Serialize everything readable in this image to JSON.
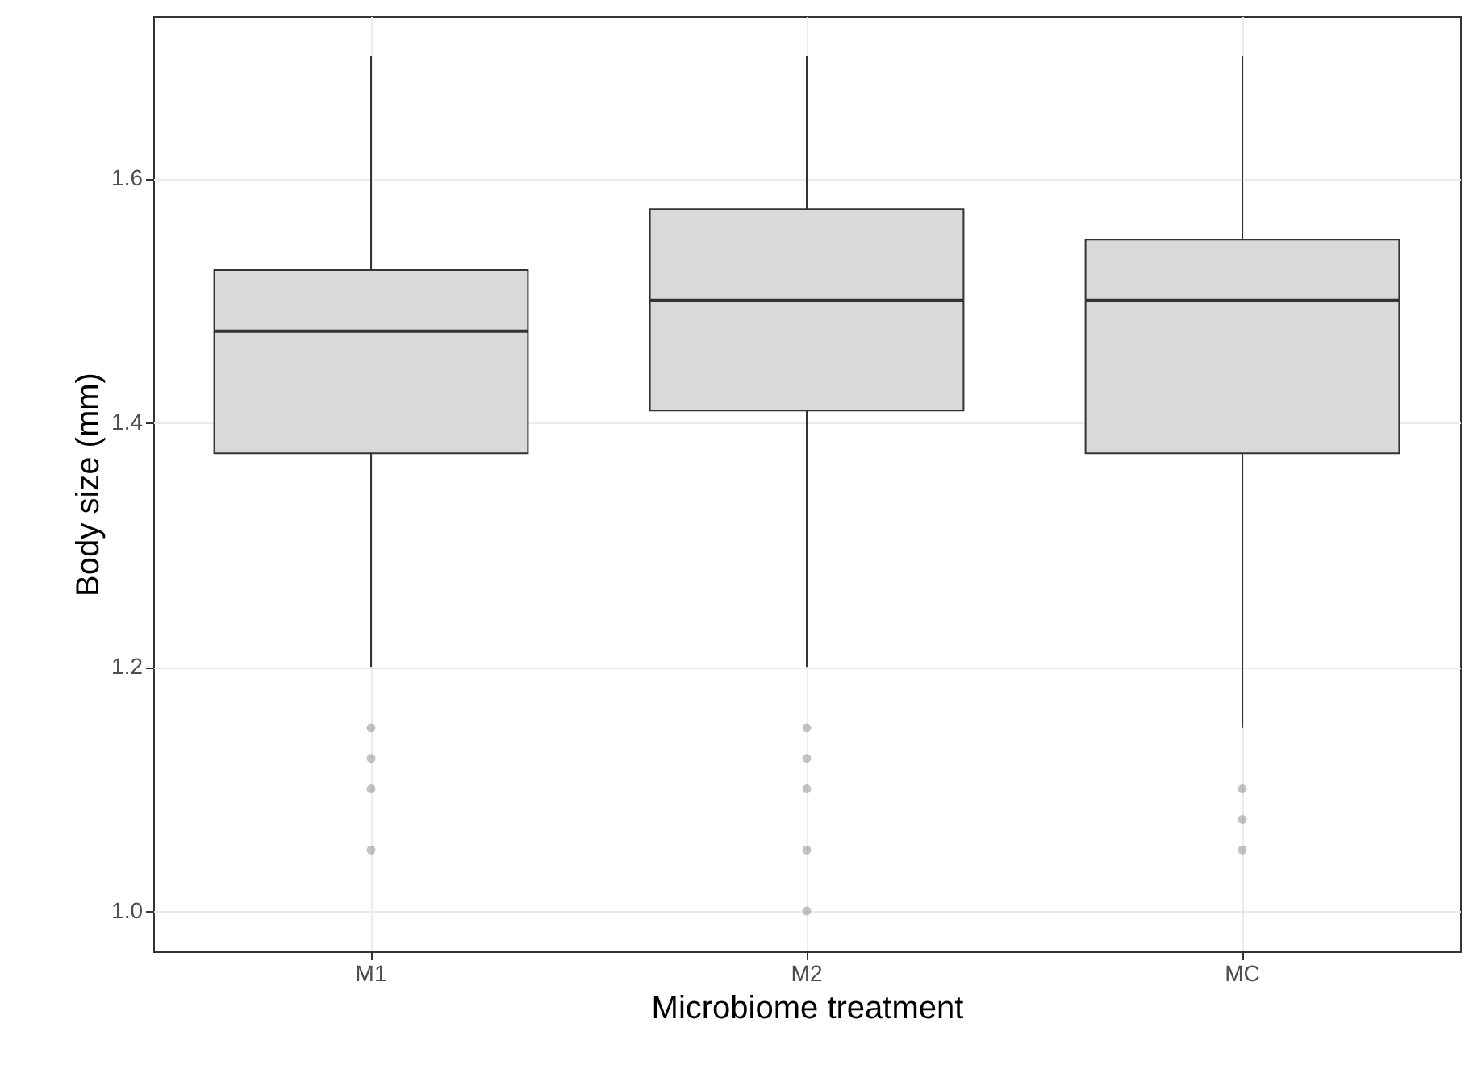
{
  "chart_data": {
    "type": "box",
    "xlabel": "Microbiome treatment",
    "ylabel": "Body size (mm)",
    "categories": [
      "M1",
      "M2",
      "MC"
    ],
    "boxes": [
      {
        "low": 1.2,
        "q1": 1.375,
        "median": 1.475,
        "q3": 1.525,
        "high": 1.7,
        "outliers": [
          1.15,
          1.125,
          1.1,
          1.05
        ]
      },
      {
        "low": 1.2,
        "q1": 1.41,
        "median": 1.5,
        "q3": 1.575,
        "high": 1.7,
        "outliers": [
          1.15,
          1.125,
          1.1,
          1.05,
          1.0
        ]
      },
      {
        "low": 1.15,
        "q1": 1.375,
        "median": 1.5,
        "q3": 1.55,
        "high": 1.7,
        "outliers": [
          1.1,
          1.075,
          1.05
        ]
      }
    ],
    "color": "#d9d9d9",
    "ylim": [
      0.967,
      1.733
    ],
    "yticks": [
      {
        "value": 1.0,
        "label": "1.0"
      },
      {
        "value": 1.2,
        "label": "1.2"
      },
      {
        "value": 1.4,
        "label": "1.4"
      },
      {
        "value": 1.6,
        "label": "1.6"
      }
    ],
    "grid": true
  }
}
